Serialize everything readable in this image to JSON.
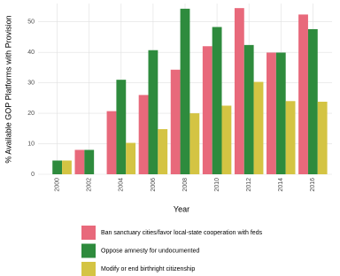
{
  "chart_data": {
    "type": "bar",
    "x_label": "Year",
    "y_label": "% Available GOP Platforms with Provision",
    "categories": [
      "2000",
      "2002",
      "2004",
      "2006",
      "2008",
      "2010",
      "2012",
      "2014",
      "2016"
    ],
    "series": [
      {
        "name": "Ban sanctuary cities/favor local-state cooperation with feds",
        "color": "#e8697b",
        "values": [
          0,
          8,
          20.7,
          26,
          34.3,
          42,
          54.5,
          39.9,
          52.4
        ]
      },
      {
        "name": "Oppose amnesty for undocumented",
        "color": "#2e8b3d",
        "values": [
          4.5,
          8,
          31,
          40.7,
          54.3,
          48.3,
          42.4,
          39.9,
          47.6
        ]
      },
      {
        "name": "Modify or end birthright citizenship",
        "color": "#d4c443",
        "values": [
          4.5,
          0,
          10.3,
          14.8,
          20,
          22.5,
          30.3,
          24,
          23.8
        ]
      }
    ],
    "ylim": [
      0,
      56
    ],
    "yticks": [
      0,
      10,
      20,
      30,
      40,
      50
    ],
    "grid": true,
    "legend": "bottom"
  }
}
